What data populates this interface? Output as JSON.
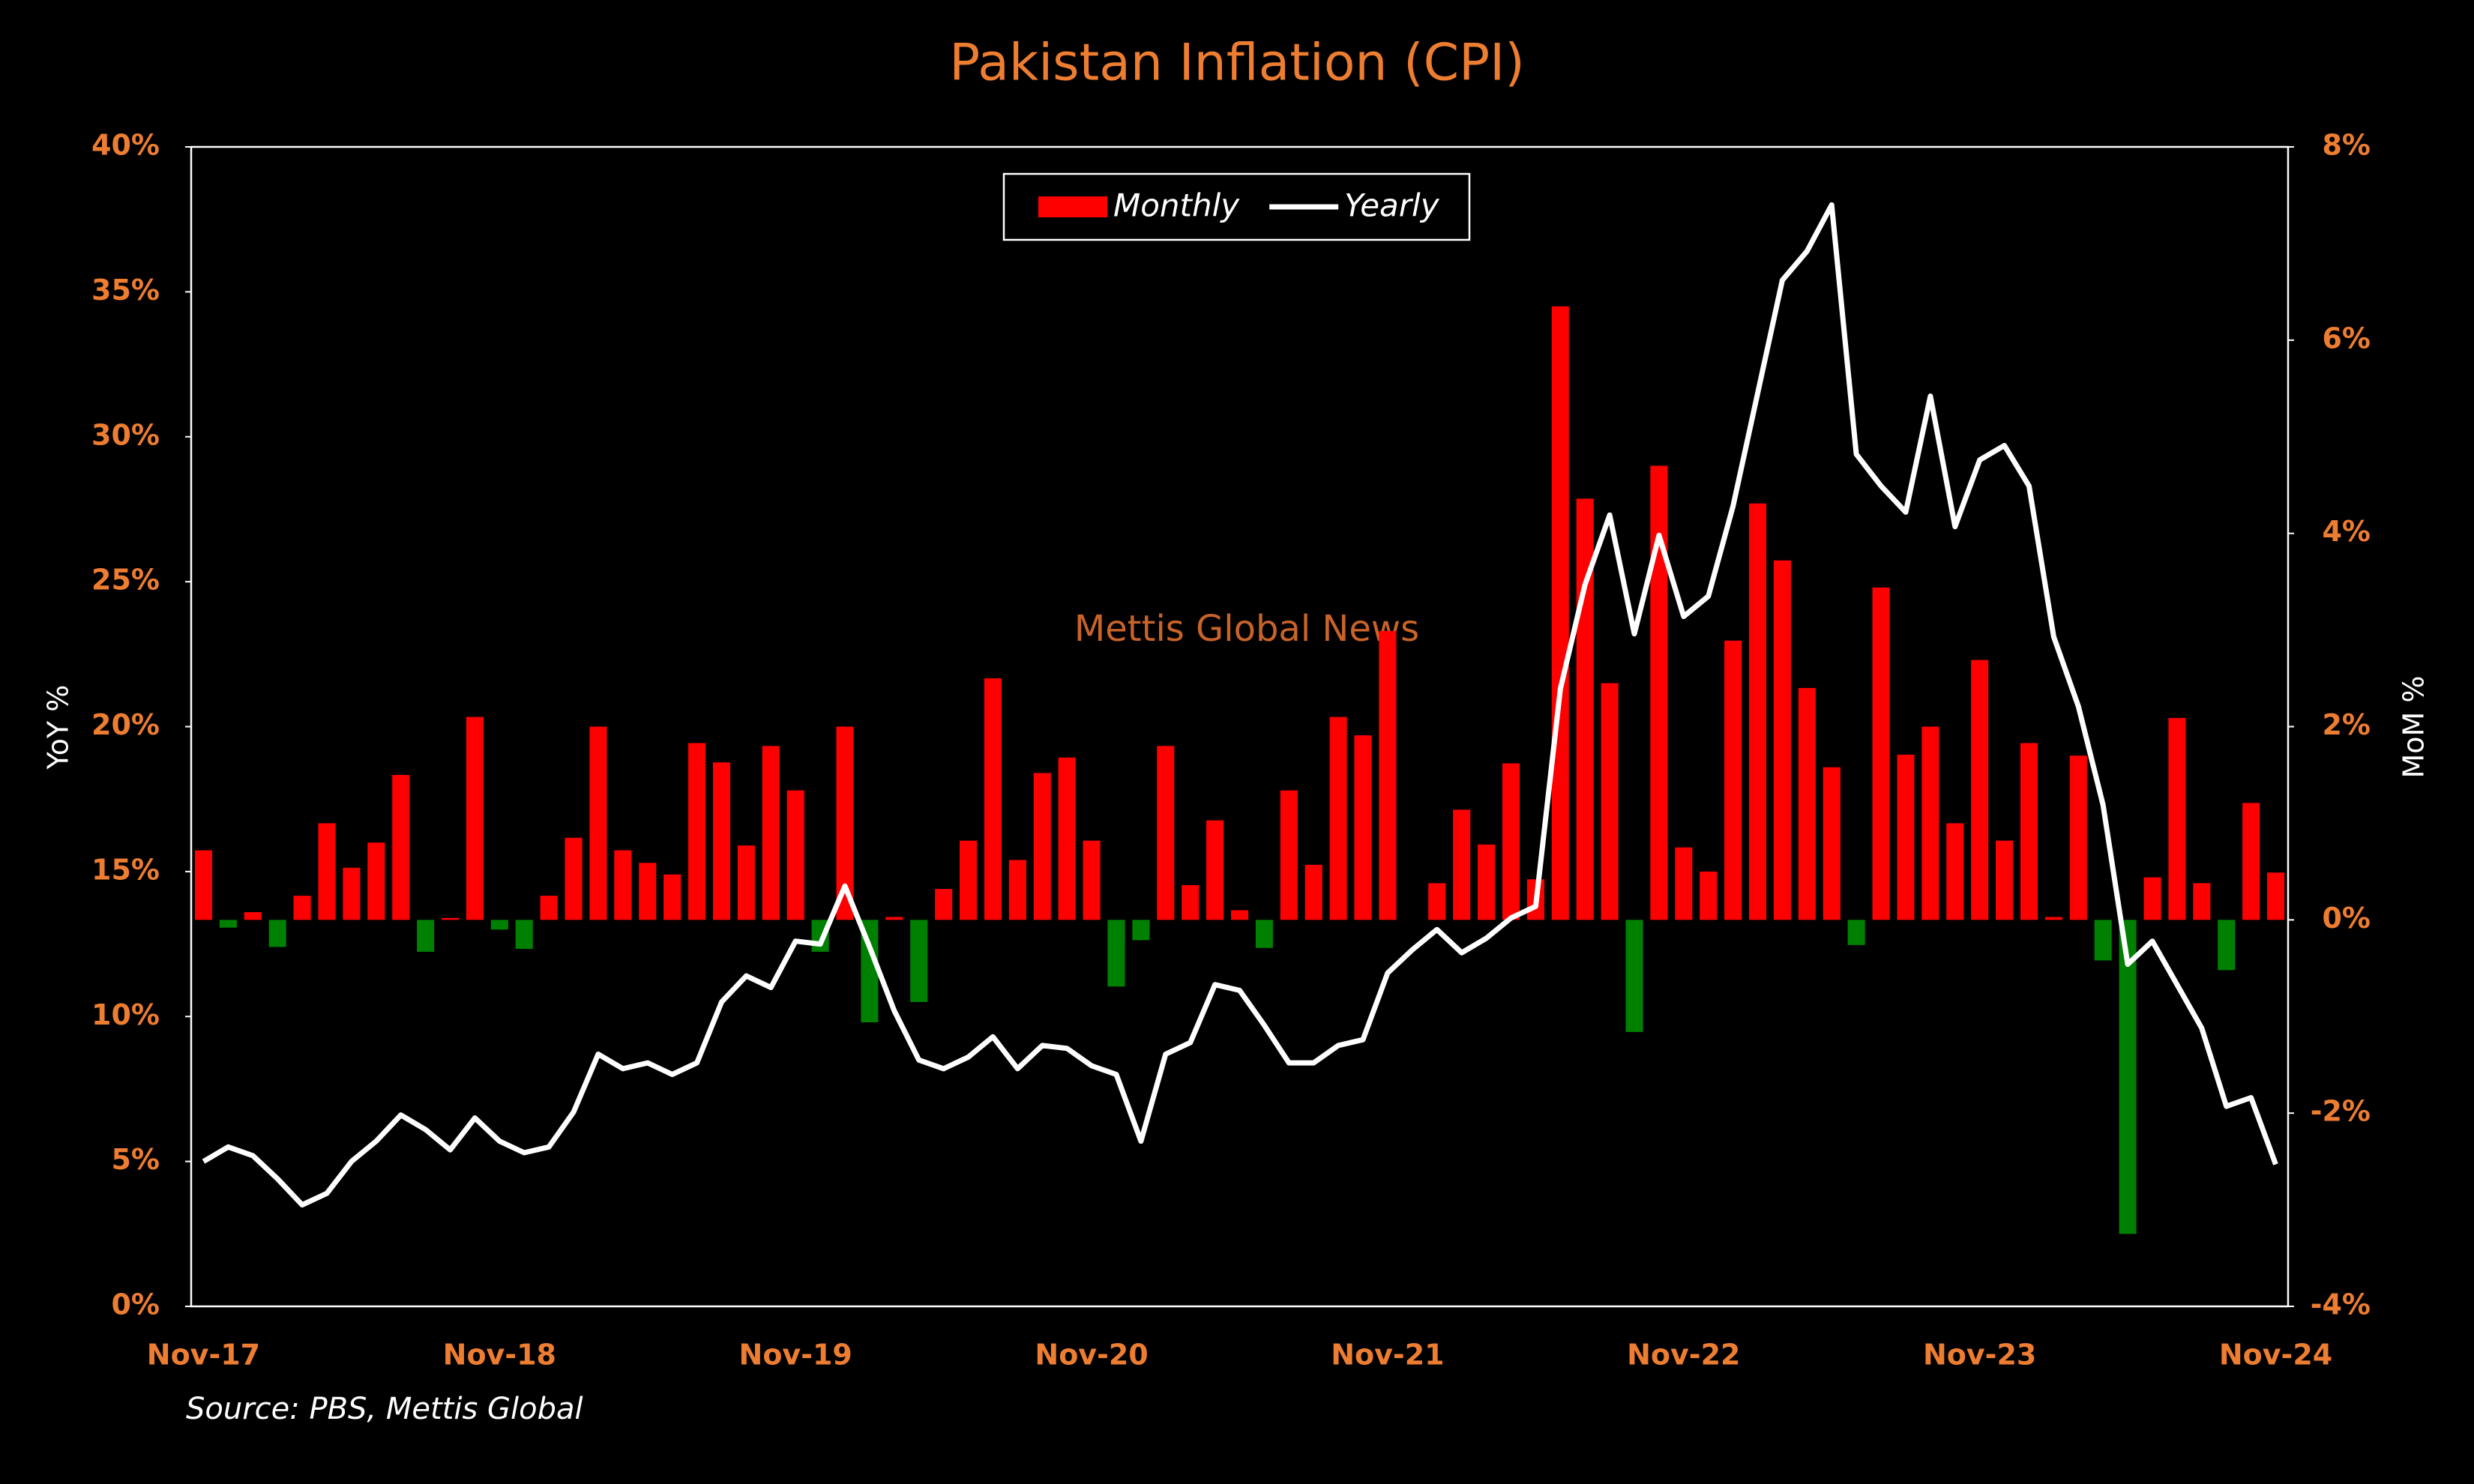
{
  "chart_data": {
    "type": "bar_line",
    "title": "Pakistan Inflation (CPI)",
    "ylabel": "YoY %",
    "y2label": "MoM %",
    "annotation": "Mettis Global News",
    "source": "Source: PBS, Mettis Global",
    "categories": [
      "Nov-17",
      null,
      null,
      null,
      null,
      null,
      null,
      null,
      null,
      null,
      null,
      null,
      "Nov-18",
      null,
      null,
      null,
      null,
      null,
      null,
      null,
      null,
      null,
      null,
      null,
      "Nov-19",
      null,
      null,
      null,
      null,
      null,
      null,
      null,
      null,
      null,
      null,
      null,
      "Nov-20",
      null,
      null,
      null,
      null,
      null,
      null,
      null,
      null,
      null,
      null,
      null,
      "Nov-21",
      null,
      null,
      null,
      null,
      null,
      null,
      null,
      null,
      null,
      null,
      null,
      "Nov-22",
      null,
      null,
      null,
      null,
      null,
      null,
      null,
      null,
      null,
      null,
      null,
      "Nov-23",
      null,
      null,
      null,
      null,
      null,
      null,
      null,
      null,
      null,
      null,
      null,
      "Nov-24"
    ],
    "series": [
      {
        "name": "Monthly",
        "type": "bar",
        "axis": "y2",
        "color": "#ff0000",
        "negative_color": "#008000",
        "values": [
          0.72,
          -0.08,
          0.08,
          -0.28,
          0.25,
          1.0,
          0.54,
          0.8,
          1.5,
          -0.33,
          0.02,
          2.1,
          -0.1,
          -0.3,
          0.25,
          0.85,
          2.0,
          0.72,
          0.59,
          0.47,
          1.83,
          1.63,
          0.77,
          1.8,
          1.34,
          -0.33,
          2.0,
          -1.06,
          0.03,
          -0.85,
          0.32,
          0.82,
          2.5,
          0.62,
          1.52,
          1.68,
          0.82,
          -0.69,
          -0.21,
          1.8,
          0.36,
          1.03,
          0.1,
          -0.29,
          1.34,
          0.57,
          2.1,
          1.91,
          2.99,
          0.0,
          0.38,
          1.14,
          0.78,
          1.62,
          0.42,
          6.35,
          4.36,
          2.45,
          -1.16,
          4.7,
          0.75,
          0.5,
          2.89,
          4.31,
          3.72,
          2.4,
          1.58,
          -0.26,
          3.44,
          1.71,
          2.0,
          1.0,
          2.69,
          0.82,
          1.83,
          0.03,
          1.7,
          -0.42,
          -3.25,
          0.44,
          2.09,
          0.38,
          -0.52,
          1.21,
          0.49
        ]
      },
      {
        "name": "Yearly",
        "type": "line",
        "color": "#ffffff",
        "values": [
          5.0,
          5.5,
          5.2,
          4.4,
          3.5,
          3.9,
          5.0,
          5.7,
          6.6,
          6.1,
          5.4,
          6.5,
          5.7,
          5.3,
          5.5,
          6.7,
          8.7,
          8.2,
          8.4,
          8.0,
          8.4,
          10.5,
          11.4,
          11.0,
          12.6,
          12.5,
          14.5,
          12.4,
          10.2,
          8.5,
          8.2,
          8.6,
          9.3,
          8.2,
          9.0,
          8.9,
          8.3,
          8.0,
          5.7,
          8.7,
          9.1,
          11.1,
          10.9,
          9.7,
          8.4,
          8.4,
          9.0,
          9.2,
          11.5,
          12.3,
          13.0,
          12.2,
          12.7,
          13.4,
          13.8,
          21.3,
          24.9,
          27.3,
          23.2,
          26.6,
          23.8,
          24.5,
          27.6,
          31.5,
          35.4,
          36.4,
          38.0,
          29.4,
          28.3,
          27.4,
          31.4,
          26.9,
          29.2,
          29.7,
          28.3,
          23.1,
          20.7,
          17.3,
          11.8,
          12.6,
          11.1,
          9.6,
          6.9,
          7.2,
          4.9
        ]
      }
    ],
    "ylim": [
      0,
      40
    ],
    "yticks": [
      {
        "value": 0,
        "label": "0%"
      },
      {
        "value": 5,
        "label": "5%"
      },
      {
        "value": 10,
        "label": "10%"
      },
      {
        "value": 15,
        "label": "15%"
      },
      {
        "value": 20,
        "label": "20%"
      },
      {
        "value": 25,
        "label": "25%"
      },
      {
        "value": 30,
        "label": "30%"
      },
      {
        "value": 35,
        "label": "35%"
      },
      {
        "value": 40,
        "label": "40%"
      }
    ],
    "y2lim": [
      -4,
      8
    ],
    "y2ticks": [
      {
        "value": -4,
        "label": "-4%"
      },
      {
        "value": -2,
        "label": "-2%"
      },
      {
        "value": 0,
        "label": "0%"
      },
      {
        "value": 2,
        "label": "2%"
      },
      {
        "value": 4,
        "label": "4%"
      },
      {
        "value": 6,
        "label": "6%"
      },
      {
        "value": 8,
        "label": "8%"
      }
    ],
    "legend": "top"
  }
}
